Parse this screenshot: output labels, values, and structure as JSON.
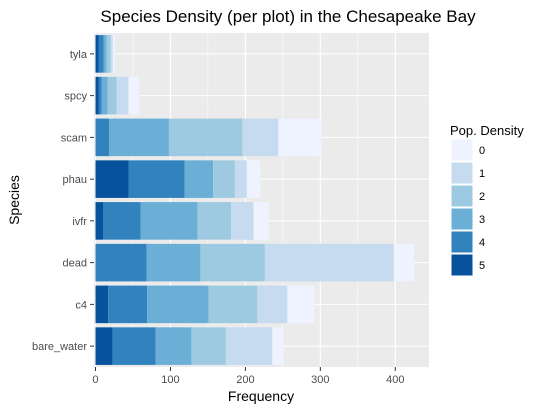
{
  "chart_data": {
    "type": "bar",
    "stacked": true,
    "orientation": "horizontal",
    "title": "Species Density (per plot) in the Chesapeake Bay",
    "xlabel": "Frequency",
    "ylabel": "Species",
    "xlim": [
      -2,
      445
    ],
    "xticks": [
      0,
      100,
      200,
      300,
      400
    ],
    "grid": true,
    "categories": [
      "tyla",
      "spcy",
      "scam",
      "phau",
      "ivfr",
      "dead",
      "c4",
      "bare_water"
    ],
    "legend": {
      "title": "Pop. Density",
      "placement": "right",
      "entries": [
        "0",
        "1",
        "2",
        "3",
        "4",
        "5"
      ]
    },
    "series": [
      {
        "name": "5",
        "color": "#08519c",
        "values": [
          4,
          4,
          0,
          44,
          10,
          0,
          17,
          23
        ]
      },
      {
        "name": "4",
        "color": "#3182bd",
        "values": [
          7,
          4,
          18,
          75,
          50,
          68,
          52,
          57
        ]
      },
      {
        "name": "3",
        "color": "#6baed6",
        "values": [
          4,
          8,
          80,
          38,
          76,
          72,
          82,
          48
        ]
      },
      {
        "name": "2",
        "color": "#9ecae1",
        "values": [
          5,
          12,
          98,
          29,
          45,
          86,
          65,
          46
        ]
      },
      {
        "name": "1",
        "color": "#c6dbef",
        "values": [
          3,
          16,
          48,
          16,
          30,
          172,
          40,
          62
        ]
      },
      {
        "name": "0",
        "color": "#eff3ff",
        "values": [
          3,
          14,
          58,
          18,
          20,
          27,
          36,
          15
        ]
      }
    ]
  }
}
